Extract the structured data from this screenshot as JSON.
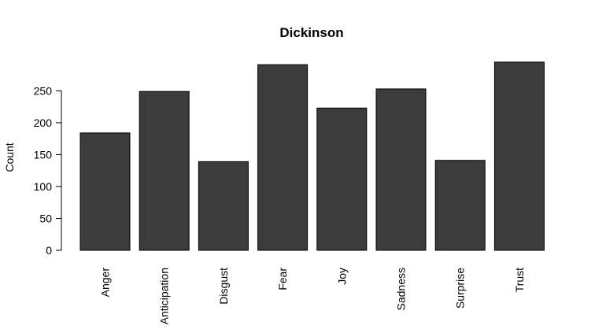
{
  "chart_data": {
    "type": "bar",
    "title": "Dickinson",
    "xlabel": "",
    "ylabel": "Count",
    "categories": [
      "Anger",
      "Anticipation",
      "Disgust",
      "Fear",
      "Joy",
      "Sadness",
      "Surprise",
      "Trust"
    ],
    "values": [
      184,
      249,
      139,
      291,
      223,
      253,
      141,
      295
    ],
    "ylim": [
      0,
      295
    ],
    "yticks": [
      "0",
      "50",
      "100",
      "150",
      "200",
      "250"
    ],
    "grid": false,
    "bar_color": "#3c3c3c"
  }
}
